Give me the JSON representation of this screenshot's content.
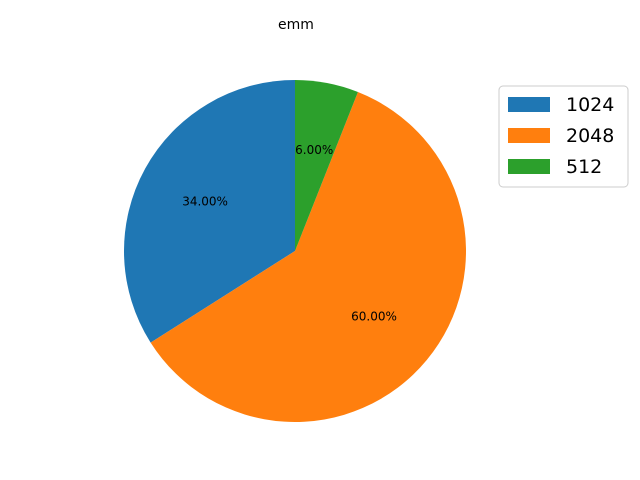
{
  "chart_data": {
    "type": "pie",
    "title": "emm",
    "categories": [
      "1024",
      "2048",
      "512"
    ],
    "values": [
      34.0,
      60.0,
      6.0
    ],
    "labels": [
      "34.00%",
      "60.00%",
      "6.00%"
    ],
    "colors": [
      "#1f77b4",
      "#ff7f0e",
      "#2ca02c"
    ],
    "start_angle_deg": 90,
    "direction": "counterclockwise",
    "legend": {
      "placement": "right",
      "entries": [
        "1024",
        "2048",
        "512"
      ]
    }
  }
}
